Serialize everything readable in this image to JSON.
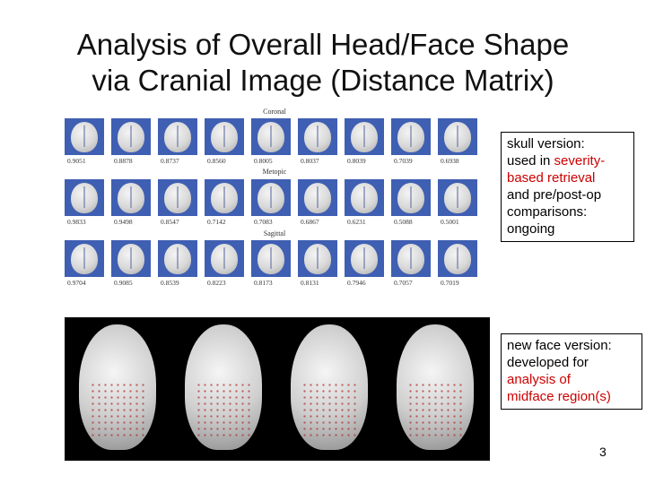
{
  "slide": {
    "title_line1": "Analysis of Overall Head/Face Shape",
    "title_line2": "via Cranial Image (Distance Matrix)",
    "page_number": "3"
  },
  "skull_figure": {
    "groups": [
      {
        "label": "Coronal",
        "scores": [
          "0.9051",
          "0.8878",
          "0.8737",
          "0.8560",
          "0.8005",
          "0.8037",
          "0.8039",
          "0.7039",
          "0.6938"
        ]
      },
      {
        "label": "Metopic",
        "scores": [
          "0.9833",
          "0.9498",
          "0.8547",
          "0.7142",
          "0.7083",
          "0.6867",
          "0.6231",
          "0.5088",
          "0.5001"
        ]
      },
      {
        "label": "Sagittal",
        "scores": [
          "0.9704",
          "0.9085",
          "0.8539",
          "0.8223",
          "0.8173",
          "0.8131",
          "0.7946",
          "0.7057",
          "0.7019"
        ]
      }
    ]
  },
  "skull_note": {
    "line1": "skull version:",
    "line2_plain": "used in ",
    "line2_red": "severity-",
    "line3_red": "based retrieval",
    "line4": "and pre/post-op",
    "line5": "comparisons:",
    "line6": "ongoing"
  },
  "face_note": {
    "line1": "new face version:",
    "line2": "developed for",
    "line3_red": "analysis of",
    "line4_red": "midface region(s)"
  },
  "colors": {
    "skull_background": "#3f5fb3",
    "highlight_text": "#cc0000",
    "landmark_dots": "#b03030"
  }
}
